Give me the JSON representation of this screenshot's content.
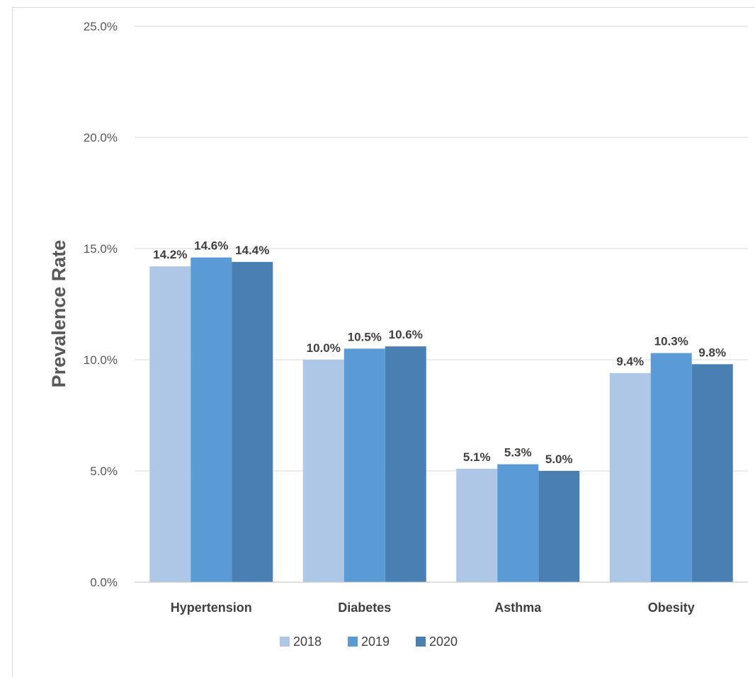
{
  "chart_data": {
    "type": "bar",
    "categories": [
      "Hypertension",
      "Diabetes",
      "Asthma",
      "Obesity"
    ],
    "series": [
      {
        "name": "2018",
        "color": "#afc7e6",
        "values": [
          14.2,
          10.0,
          5.1,
          9.4
        ],
        "labels": [
          "14.2%",
          "10.0%",
          "5.1%",
          "9.4%"
        ]
      },
      {
        "name": "2019",
        "color": "#5a9bd5",
        "values": [
          14.6,
          10.5,
          5.3,
          10.3
        ],
        "labels": [
          "14.6%",
          "10.5%",
          "5.3%",
          "10.3%"
        ]
      },
      {
        "name": "2020",
        "color": "#4a7fb4",
        "values": [
          14.4,
          10.6,
          5.0,
          9.8
        ],
        "labels": [
          "14.4%",
          "10.6%",
          "5.0%",
          "9.8%"
        ]
      }
    ],
    "title": "",
    "xlabel": "",
    "ylabel": "Prevalence Rate",
    "ylim": [
      0,
      25
    ],
    "yticks": [
      0,
      5,
      10,
      15,
      20,
      25
    ],
    "ytick_labels": [
      "0.0%",
      "5.0%",
      "10.0%",
      "15.0%",
      "20.0%",
      "25.0%"
    ],
    "grid": true,
    "legend_position": "bottom"
  }
}
